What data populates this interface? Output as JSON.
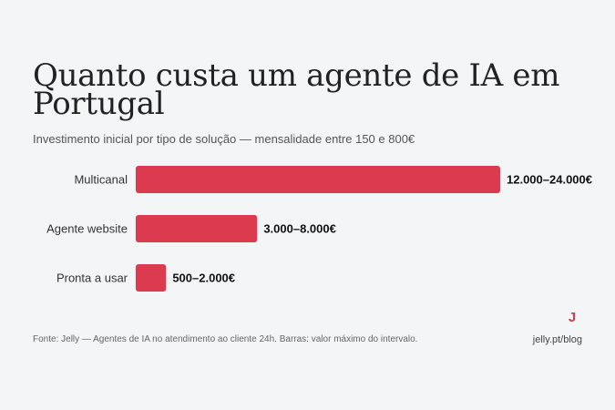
{
  "header": {
    "title": "Quanto custa um agente de IA em Portugal",
    "subtitle": "Investimento inicial por tipo de solução — mensalidade entre 150 e 800€"
  },
  "chart_data": {
    "type": "bar",
    "orientation": "horizontal",
    "title": "Quanto custa um agente de IA em Portugal",
    "subtitle": "Investimento inicial por tipo de solução — mensalidade entre 150 e 800€",
    "categories": [
      "Multicanal",
      "Agente website",
      "Pronta a usar"
    ],
    "values": [
      24000,
      8000,
      2000
    ],
    "value_labels": [
      "12.000–24.000€",
      "3.000–8.000€",
      "500–2.000€"
    ],
    "xlim": [
      0,
      24000
    ],
    "grid": false,
    "bar_color": "#dc3a4e"
  },
  "footer": {
    "source": "Fonte: Jelly — Agentes de IA no atendimento ao cliente 24h. Barras: valor máximo do intervalo.",
    "logo_letter": "J",
    "url": "jelly.pt/blog"
  },
  "colors": {
    "background": "#f4f5f7",
    "accent": "#dc3a4e"
  }
}
